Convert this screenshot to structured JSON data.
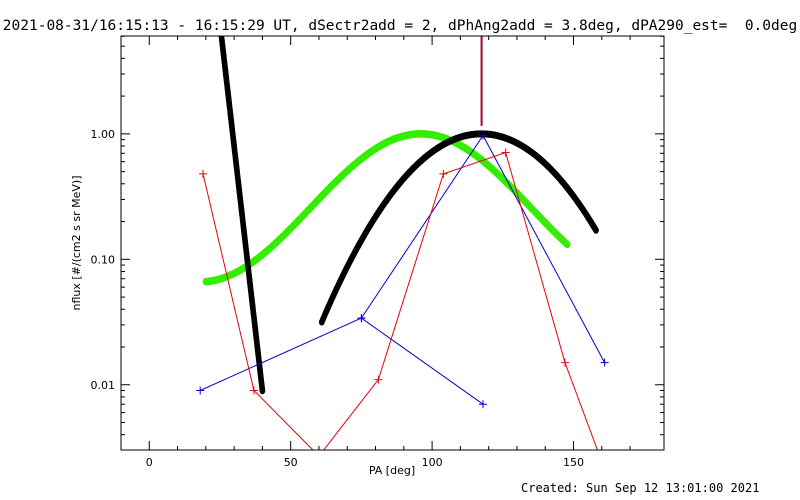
{
  "title": "2021-08-31/16:15:13 - 16:15:29 UT, dSectr2add = 2, dPhAng2add = 3.8deg, dPA290_est=  0.0deg",
  "footer": "Created: Sun Sep 12 13:01:00 2021",
  "colors": {
    "red": "#e8000c",
    "blue": "#0000cc",
    "black": "#000000",
    "green": "#33ee00",
    "marker": "#aa0022"
  },
  "chart_data": {
    "type": "line",
    "xlabel": "PA [deg]",
    "ylabel": "nflux [#/(cm2 s sr MeV)]",
    "xlim": [
      -10,
      182
    ],
    "ylim_log10": [
      -2.52,
      0.78
    ],
    "yscale": "log",
    "x_ticks": [
      0,
      50,
      100,
      150
    ],
    "x_tick_labels": [
      "0",
      "50",
      "100",
      "150"
    ],
    "y_ticks": [
      0.01,
      0.1,
      1.0
    ],
    "y_tick_labels": [
      "0.01",
      "0.10",
      "1.00"
    ],
    "vertical_marker_x": 117.5,
    "series": [
      {
        "color": "red",
        "style": "line+plus",
        "points": [
          [
            19,
            0.48
          ],
          [
            37,
            0.009
          ],
          [
            60,
            0.0027
          ],
          [
            81,
            0.011
          ],
          [
            104,
            0.48
          ],
          [
            126,
            0.71
          ],
          [
            147,
            0.015
          ],
          [
            159,
            0.0028
          ]
        ]
      },
      {
        "color": "blue",
        "style": "line+plus",
        "points": [
          [
            18,
            0.009
          ],
          [
            75,
            0.034
          ],
          [
            118,
            0.007
          ],
          [
            75,
            0.034
          ],
          [
            118,
            0.97
          ],
          [
            161,
            0.015
          ]
        ]
      },
      {
        "color": "black",
        "style": "thick-dots",
        "segments": [
          {
            "curve": "steep",
            "x_range": [
              23,
              40
            ]
          },
          {
            "curve": "gaussian",
            "center": 117.5,
            "peak": 1.0,
            "sigma": 21.5,
            "x_range": [
              61,
              158
            ]
          }
        ]
      },
      {
        "color": "green",
        "style": "thick-dots",
        "curve": "cosine",
        "x_range": [
          20,
          148
        ]
      }
    ]
  }
}
